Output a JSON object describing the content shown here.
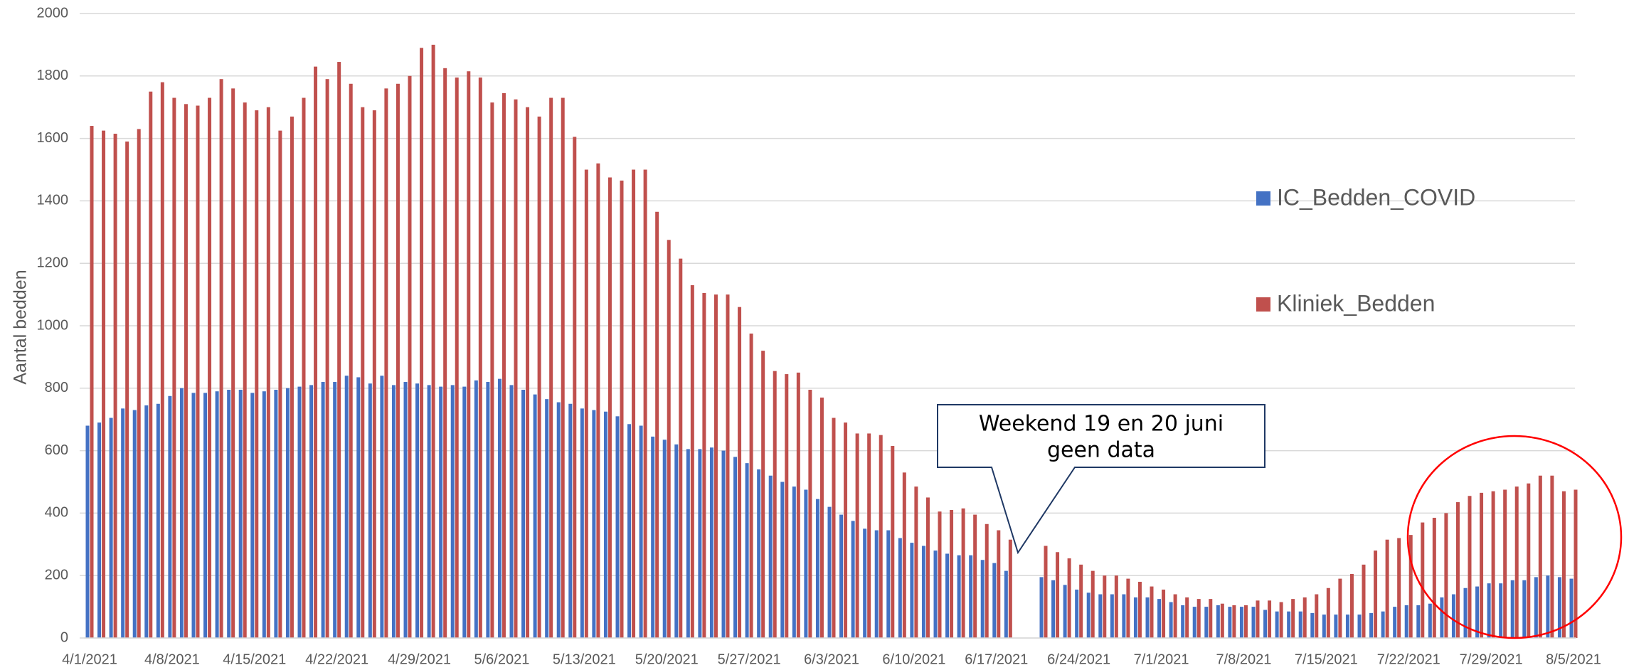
{
  "chart_data": {
    "type": "bar",
    "y_label": "Aantal bedden",
    "annotation": [
      "Weekend 19 en 20 juni",
      "geen data"
    ],
    "categories": [
      "4/1/2021",
      null,
      null,
      null,
      null,
      null,
      null,
      "4/8/2021",
      null,
      null,
      null,
      null,
      null,
      null,
      "4/15/2021",
      null,
      null,
      null,
      null,
      null,
      null,
      "4/22/2021",
      null,
      null,
      null,
      null,
      null,
      null,
      "4/29/2021",
      null,
      null,
      null,
      null,
      null,
      null,
      "5/6/2021",
      null,
      null,
      null,
      null,
      null,
      null,
      "5/13/2021",
      null,
      null,
      null,
      null,
      null,
      null,
      "5/20/2021",
      null,
      null,
      null,
      null,
      null,
      null,
      "5/27/2021",
      null,
      null,
      null,
      null,
      null,
      null,
      "6/3/2021",
      null,
      null,
      null,
      null,
      null,
      null,
      "6/10/2021",
      null,
      null,
      null,
      null,
      null,
      null,
      "6/17/2021",
      null,
      null,
      null,
      null,
      null,
      null,
      "6/24/2021",
      null,
      null,
      null,
      null,
      null,
      null,
      "7/1/2021",
      null,
      null,
      null,
      null,
      null,
      null,
      "7/8/2021",
      null,
      null,
      null,
      null,
      null,
      null,
      "7/15/2021",
      null,
      null,
      null,
      null,
      null,
      null,
      "7/22/2021",
      null,
      null,
      null,
      null,
      null,
      null,
      "7/29/2021",
      null,
      null,
      null,
      null,
      null,
      null,
      "8/5/2021"
    ],
    "series": [
      {
        "name": "IC_Bedden_COVID",
        "color": "#4472c4",
        "values": [
          680,
          690,
          705,
          735,
          730,
          745,
          750,
          775,
          800,
          785,
          785,
          790,
          795,
          795,
          785,
          790,
          795,
          800,
          805,
          810,
          820,
          820,
          840,
          835,
          815,
          840,
          810,
          820,
          815,
          810,
          805,
          810,
          805,
          825,
          820,
          830,
          810,
          795,
          780,
          765,
          755,
          750,
          735,
          730,
          725,
          710,
          685,
          680,
          645,
          635,
          620,
          605,
          605,
          610,
          600,
          580,
          560,
          540,
          520,
          500,
          485,
          475,
          445,
          420,
          395,
          375,
          350,
          345,
          345,
          320,
          305,
          295,
          280,
          270,
          265,
          265,
          250,
          240,
          215,
          null,
          null,
          195,
          185,
          170,
          155,
          145,
          140,
          140,
          140,
          130,
          130,
          125,
          115,
          105,
          100,
          100,
          105,
          100,
          100,
          100,
          90,
          85,
          85,
          85,
          80,
          75,
          75,
          75,
          75,
          80,
          85,
          100,
          105,
          105,
          110,
          130,
          140,
          160,
          165,
          175,
          175,
          185,
          185,
          195,
          200,
          195,
          190
        ]
      },
      {
        "name": "Kliniek_Bedden",
        "color": "#c0504d",
        "values": [
          1640,
          1625,
          1615,
          1590,
          1630,
          1750,
          1780,
          1730,
          1710,
          1705,
          1730,
          1790,
          1760,
          1715,
          1690,
          1700,
          1625,
          1670,
          1730,
          1830,
          1790,
          1845,
          1775,
          1700,
          1690,
          1760,
          1775,
          1800,
          1890,
          1900,
          1825,
          1795,
          1815,
          1795,
          1715,
          1745,
          1725,
          1700,
          1670,
          1730,
          1730,
          1605,
          1500,
          1520,
          1475,
          1465,
          1500,
          1500,
          1365,
          1275,
          1215,
          1130,
          1105,
          1100,
          1100,
          1060,
          975,
          920,
          855,
          845,
          850,
          795,
          770,
          705,
          690,
          655,
          655,
          650,
          615,
          530,
          485,
          450,
          405,
          410,
          415,
          395,
          365,
          345,
          315,
          null,
          null,
          295,
          275,
          255,
          235,
          215,
          200,
          200,
          190,
          180,
          165,
          155,
          140,
          130,
          125,
          125,
          110,
          105,
          105,
          120,
          120,
          115,
          125,
          130,
          140,
          160,
          190,
          205,
          235,
          280,
          315,
          320,
          330,
          370,
          385,
          400,
          435,
          455,
          465,
          470,
          475,
          485,
          495,
          520,
          520,
          470,
          475
        ]
      }
    ],
    "ylim": [
      0,
      2000
    ],
    "yticks": [
      0,
      200,
      400,
      600,
      800,
      1000,
      1200,
      1400,
      1600,
      1800,
      2000
    ],
    "grid": true
  }
}
